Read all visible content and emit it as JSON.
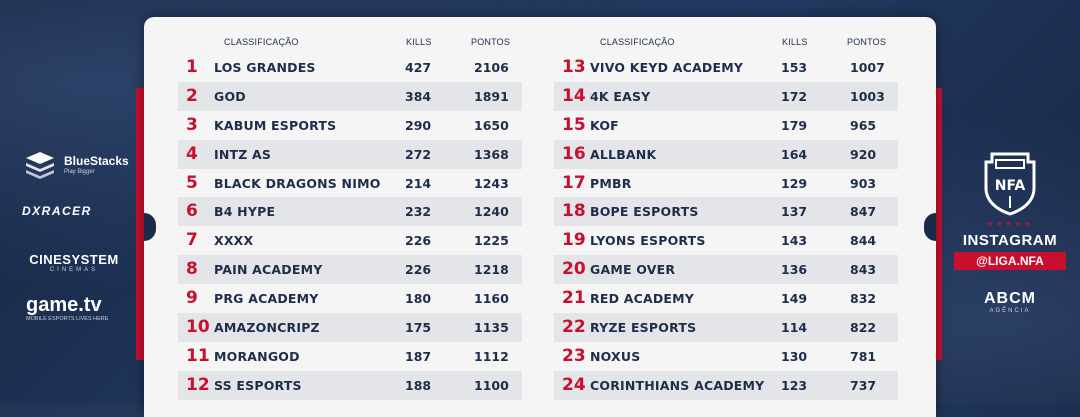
{
  "headers": {
    "classification": "CLASSIFICAÇÃO",
    "kills": "KILLS",
    "points": "PONTOS"
  },
  "left_table": [
    {
      "rank": "1",
      "team": "LOS GRANDES",
      "kills": "427",
      "points": "2106"
    },
    {
      "rank": "2",
      "team": "GOD",
      "kills": "384",
      "points": "1891"
    },
    {
      "rank": "3",
      "team": "KABUM ESPORTS",
      "kills": "290",
      "points": "1650"
    },
    {
      "rank": "4",
      "team": "INTZ AS",
      "kills": "272",
      "points": "1368"
    },
    {
      "rank": "5",
      "team": "BLACK DRAGONS NIMO",
      "kills": "214",
      "points": "1243"
    },
    {
      "rank": "6",
      "team": "B4 HYPE",
      "kills": "232",
      "points": "1240"
    },
    {
      "rank": "7",
      "team": "XXXX",
      "kills": "226",
      "points": "1225"
    },
    {
      "rank": "8",
      "team": "PAIN ACADEMY",
      "kills": "226",
      "points": "1218"
    },
    {
      "rank": "9",
      "team": "PRG ACADEMY",
      "kills": "180",
      "points": "1160"
    },
    {
      "rank": "10",
      "team": "AMAZONCRIPZ",
      "kills": "175",
      "points": "1135"
    },
    {
      "rank": "11",
      "team": "MORANGOD",
      "kills": "187",
      "points": "1112"
    },
    {
      "rank": "12",
      "team": "SS ESPORTS",
      "kills": "188",
      "points": "1100"
    }
  ],
  "right_table": [
    {
      "rank": "13",
      "team": "VIVO KEYD ACADEMY",
      "kills": "153",
      "points": "1007"
    },
    {
      "rank": "14",
      "team": "4K EASY",
      "kills": "172",
      "points": "1003"
    },
    {
      "rank": "15",
      "team": "KOF",
      "kills": "179",
      "points": "965"
    },
    {
      "rank": "16",
      "team": "ALLBANK",
      "kills": "164",
      "points": "920"
    },
    {
      "rank": "17",
      "team": "PMBR",
      "kills": "129",
      "points": "903"
    },
    {
      "rank": "18",
      "team": "BOPE ESPORTS",
      "kills": "137",
      "points": "847"
    },
    {
      "rank": "19",
      "team": "LYONS ESPORTS",
      "kills": "143",
      "points": "844"
    },
    {
      "rank": "20",
      "team": "GAME OVER",
      "kills": "136",
      "points": "843"
    },
    {
      "rank": "21",
      "team": "RED ACADEMY",
      "kills": "149",
      "points": "832"
    },
    {
      "rank": "22",
      "team": "RYZE ESPORTS",
      "kills": "114",
      "points": "822"
    },
    {
      "rank": "23",
      "team": "NOXUS",
      "kills": "130",
      "points": "781"
    },
    {
      "rank": "24",
      "team": "CORINTHIANS ACADEMY",
      "kills": "123",
      "points": "737"
    }
  ],
  "sponsors": {
    "bluestacks": {
      "name": "BlueStacks",
      "tagline": "Play Bigger"
    },
    "dxracer": "DXRACER",
    "cinesystem": {
      "name": "CINESYSTEM",
      "tagline": "CINEMAS"
    },
    "gametv": {
      "name": "game.tv",
      "tagline": "MOBILE ESPORTS LIVES HERE"
    }
  },
  "brand": {
    "logo_text": "NFA",
    "instagram_label": "INSTAGRAM",
    "instagram_handle": "@LIGA.NFA",
    "agency_name": "ABCM",
    "agency_sub": "AGÊNCIA"
  },
  "colors": {
    "accent": "#c8102e",
    "navy": "#1e2d4a",
    "background": "#1a2b4a",
    "board": "#f5f5f6"
  }
}
